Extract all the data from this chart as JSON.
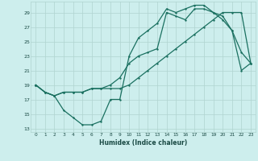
{
  "xlabel": "Humidex (Indice chaleur)",
  "bg_color": "#cdeeed",
  "grid_color": "#b0d4d0",
  "line_color": "#1a7060",
  "xlim": [
    -0.5,
    23.5
  ],
  "ylim": [
    12.5,
    30.5
  ],
  "xticks": [
    0,
    1,
    2,
    3,
    4,
    5,
    6,
    7,
    8,
    9,
    10,
    11,
    12,
    13,
    14,
    15,
    16,
    17,
    18,
    19,
    20,
    21,
    22,
    23
  ],
  "yticks": [
    13,
    15,
    17,
    19,
    21,
    23,
    25,
    27,
    29
  ],
  "line1_x": [
    0,
    1,
    2,
    3,
    4,
    5,
    6,
    7,
    8,
    9,
    10,
    11,
    12,
    13,
    14,
    15,
    16,
    17,
    18,
    19,
    20,
    21,
    22,
    23
  ],
  "line1_y": [
    19,
    18,
    17.5,
    18,
    18,
    18,
    18.5,
    18.5,
    18.5,
    18.5,
    19,
    20,
    21,
    22,
    23,
    24,
    25,
    26,
    27,
    28,
    29,
    29,
    29,
    22
  ],
  "line2_x": [
    0,
    1,
    2,
    3,
    4,
    5,
    6,
    7,
    8,
    9,
    10,
    11,
    12,
    13,
    14,
    15,
    16,
    17,
    18,
    19,
    20,
    21,
    22,
    23
  ],
  "line2_y": [
    19,
    18,
    17.5,
    15.5,
    14.5,
    13.5,
    13.5,
    14,
    17,
    17,
    23,
    25.5,
    26.5,
    27.5,
    29.5,
    29,
    29.5,
    30,
    30,
    29,
    28,
    26.5,
    21,
    22
  ],
  "line3_x": [
    0,
    1,
    2,
    3,
    4,
    5,
    6,
    7,
    8,
    9,
    10,
    11,
    12,
    13,
    14,
    15,
    16,
    17,
    18,
    19,
    20,
    21,
    22,
    23
  ],
  "line3_y": [
    19,
    18,
    17.5,
    18,
    18,
    18,
    18.5,
    18.5,
    19,
    20,
    22,
    23,
    23.5,
    24,
    29,
    28.5,
    28,
    29.5,
    29.5,
    29,
    28.5,
    26.5,
    23.5,
    22
  ]
}
